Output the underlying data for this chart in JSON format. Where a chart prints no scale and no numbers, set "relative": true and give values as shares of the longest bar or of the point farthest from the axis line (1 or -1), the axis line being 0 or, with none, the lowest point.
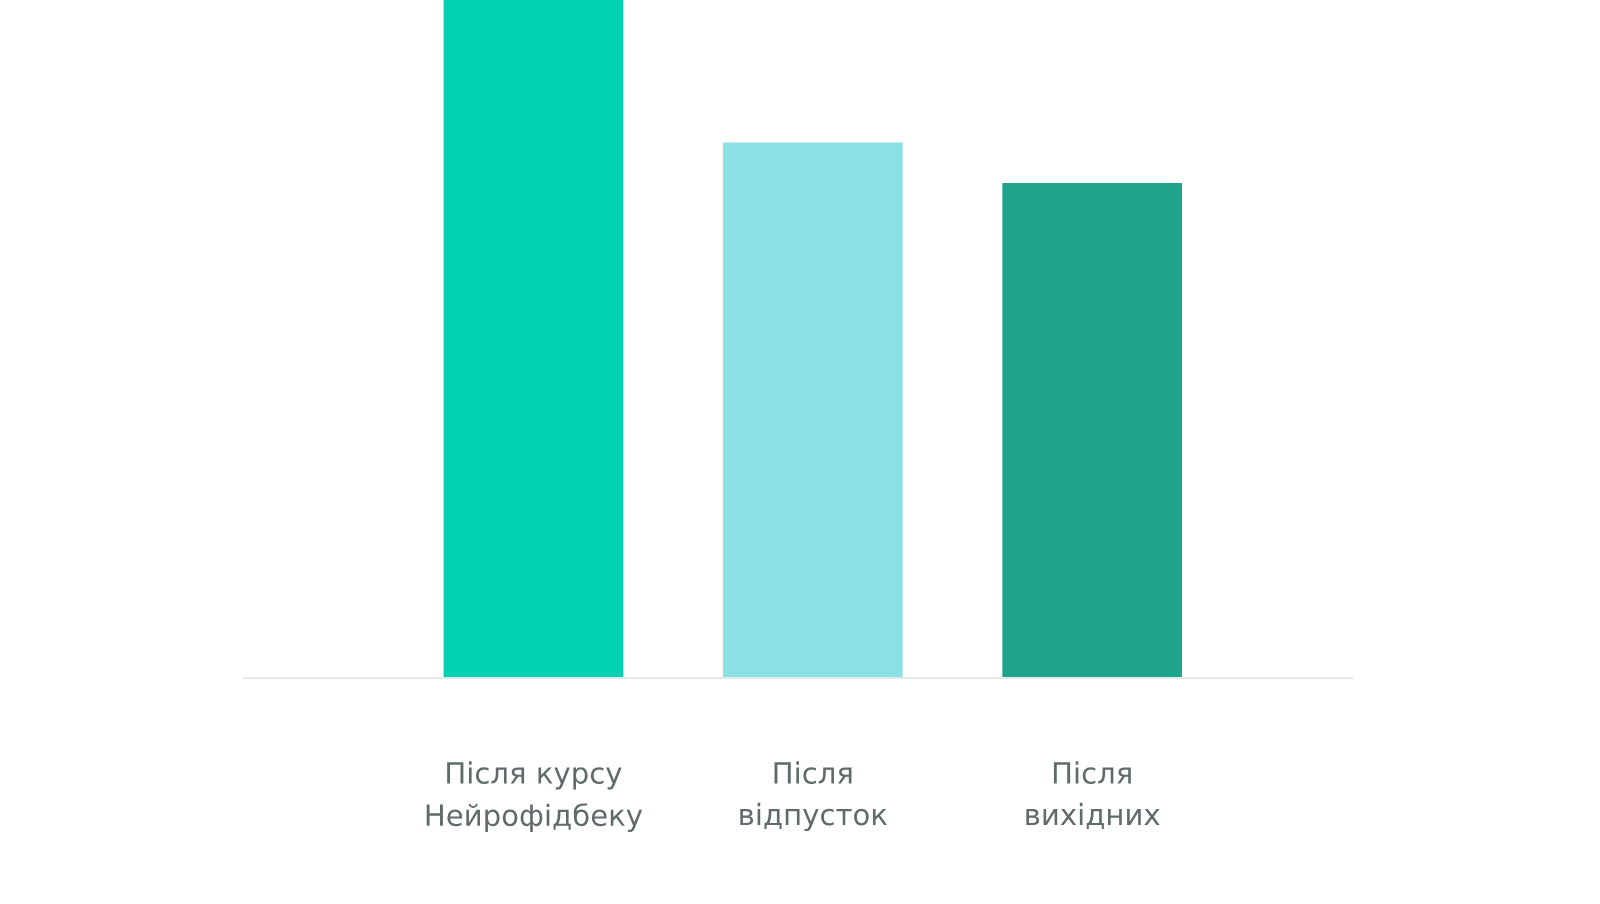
{
  "chart_data": {
    "type": "bar",
    "relative": true,
    "categories": [
      "Після курсу\nНейрофідбеку",
      "Після\nвідпусток",
      "Після\nвихідних"
    ],
    "values": [
      1,
      0.79,
      0.73
    ],
    "colors": [
      "#00d1b0",
      "#8ae0e2",
      "#1ea58b"
    ],
    "grid": false
  }
}
